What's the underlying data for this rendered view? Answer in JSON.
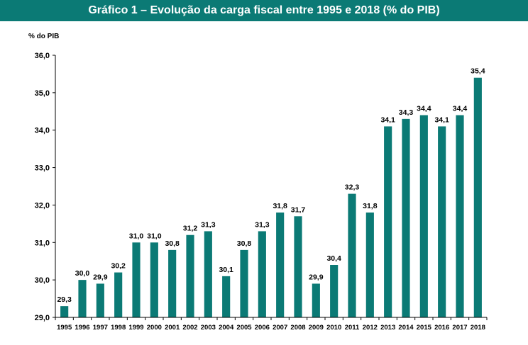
{
  "title": "Gráfico 1 – Evolução da carga fiscal entre 1995 e 2018 (% do PIB)",
  "colors": {
    "header_bg": "#0b7a75",
    "bar": "#0b7a75",
    "axis": "#000000",
    "text": "#000000"
  },
  "chart_data": {
    "type": "bar",
    "title": "Gráfico 1 – Evolução da carga fiscal entre 1995 e 2018 (% do PIB)",
    "ylabel": "% do PIB",
    "xlabel": "",
    "ylim": [
      29.0,
      36.0
    ],
    "yticks": [
      29.0,
      30.0,
      31.0,
      32.0,
      33.0,
      34.0,
      35.0,
      36.0
    ],
    "ytick_labels": [
      "29,0",
      "30,0",
      "31,0",
      "32,0",
      "33,0",
      "34,0",
      "35,0",
      "36,0"
    ],
    "grid": false,
    "categories": [
      "1995",
      "1996",
      "1997",
      "1998",
      "1999",
      "2000",
      "2001",
      "2002",
      "2003",
      "2004",
      "2005",
      "2006",
      "2007",
      "2008",
      "2009",
      "2010",
      "2011",
      "2012",
      "2013",
      "2014",
      "2015",
      "2016",
      "2017",
      "2018"
    ],
    "values": [
      29.3,
      30.0,
      29.9,
      30.2,
      31.0,
      31.0,
      30.8,
      31.2,
      31.3,
      30.1,
      30.8,
      31.3,
      31.8,
      31.7,
      29.9,
      30.4,
      32.3,
      31.8,
      34.1,
      34.3,
      34.4,
      34.1,
      34.4,
      35.4
    ],
    "value_labels": [
      "29,3",
      "30,0",
      "29,9",
      "30,2",
      "31,0",
      "31,0",
      "30,8",
      "31,2",
      "31,3",
      "30,1",
      "30,8",
      "31,3",
      "31,8",
      "31,7",
      "29,9",
      "30,4",
      "32,3",
      "31,8",
      "34,1",
      "34,3",
      "34,4",
      "34,1",
      "34,4",
      "35,4"
    ]
  }
}
